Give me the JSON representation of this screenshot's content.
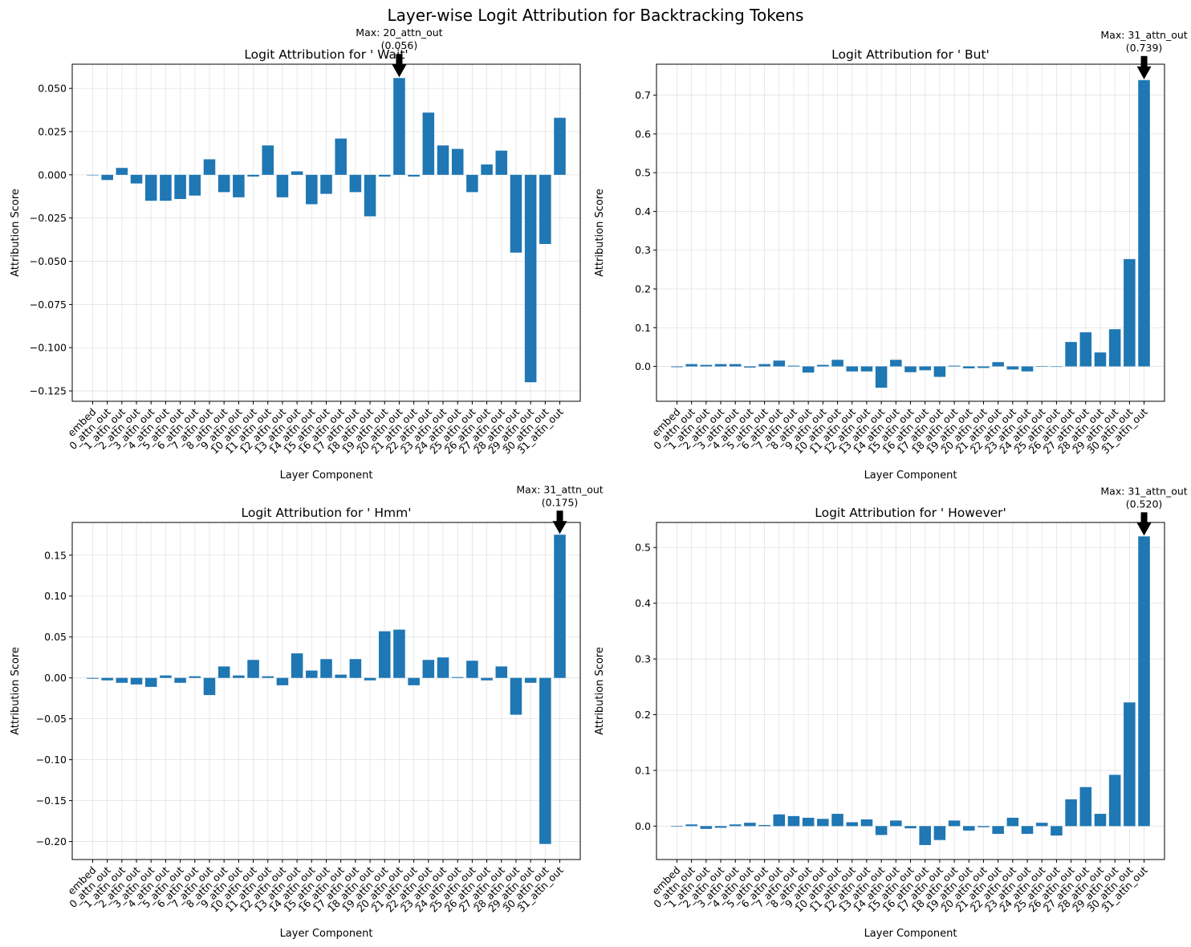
{
  "figure": {
    "title": "Layer-wise Logit Attribution for Backtracking Tokens"
  },
  "colors": {
    "bar": "#1f77b4",
    "arrow": "#000000"
  },
  "chart_data": [
    {
      "type": "bar",
      "title": "Logit Attribution for ' Wait'",
      "xlabel": "Layer Component",
      "ylabel": "Attribution Score",
      "categories": [
        "embed",
        "0_attn_out",
        "1_attn_out",
        "2_attn_out",
        "3_attn_out",
        "4_attn_out",
        "5_attn_out",
        "6_attn_out",
        "7_attn_out",
        "8_attn_out",
        "9_attn_out",
        "10_attn_out",
        "11_attn_out",
        "12_attn_out",
        "13_attn_out",
        "14_attn_out",
        "15_attn_out",
        "16_attn_out",
        "17_attn_out",
        "18_attn_out",
        "19_attn_out",
        "20_attn_out",
        "21_attn_out",
        "22_attn_out",
        "23_attn_out",
        "24_attn_out",
        "25_attn_out",
        "26_attn_out",
        "27_attn_out",
        "28_attn_out",
        "29_attn_out",
        "30_attn_out",
        "31_attn_out"
      ],
      "values": [
        0.0,
        -0.003,
        0.004,
        -0.005,
        -0.015,
        -0.015,
        -0.014,
        -0.012,
        0.009,
        -0.01,
        -0.013,
        -0.001,
        0.017,
        -0.013,
        0.002,
        -0.017,
        -0.011,
        0.021,
        -0.01,
        -0.024,
        -0.001,
        0.056,
        -0.001,
        0.036,
        0.017,
        0.015,
        -0.01,
        0.006,
        0.014,
        -0.045,
        -0.12,
        -0.04,
        0.033
      ],
      "ylim": [
        -0.131,
        0.064
      ],
      "yticks": [
        0.05,
        0.025,
        0.0,
        -0.025,
        -0.05,
        -0.075,
        -0.1,
        -0.125
      ],
      "ytick_labels": [
        "0.050",
        "0.025",
        "0.000",
        "−0.025",
        "−0.050",
        "−0.075",
        "−0.100",
        "−0.125"
      ],
      "grid": true,
      "annotation": {
        "label": "Max: 20_attn_out",
        "value_label": "(0.056)",
        "index": 21,
        "value": 0.056
      }
    },
    {
      "type": "bar",
      "title": "Logit Attribution for ' But'",
      "xlabel": "Layer Component",
      "ylabel": "Attribution Score",
      "categories": [
        "embed",
        "0_attn_out",
        "1_attn_out",
        "2_attn_out",
        "3_attn_out",
        "4_attn_out",
        "5_attn_out",
        "6_attn_out",
        "7_attn_out",
        "8_attn_out",
        "9_attn_out",
        "10_attn_out",
        "11_attn_out",
        "12_attn_out",
        "13_attn_out",
        "14_attn_out",
        "15_attn_out",
        "16_attn_out",
        "17_attn_out",
        "18_attn_out",
        "19_attn_out",
        "20_attn_out",
        "21_attn_out",
        "22_attn_out",
        "23_attn_out",
        "24_attn_out",
        "25_attn_out",
        "26_attn_out",
        "27_attn_out",
        "28_attn_out",
        "29_attn_out",
        "30_attn_out",
        "31_attn_out"
      ],
      "values": [
        -0.002,
        0.006,
        0.004,
        0.006,
        0.006,
        -0.003,
        0.006,
        0.015,
        0.002,
        -0.016,
        0.004,
        0.017,
        -0.013,
        -0.013,
        -0.055,
        0.017,
        -0.015,
        -0.01,
        -0.027,
        0.002,
        -0.005,
        -0.004,
        0.011,
        -0.008,
        -0.013,
        0.001,
        0.0,
        0.063,
        0.088,
        0.036,
        0.096,
        0.277,
        0.739
      ],
      "ylim": [
        -0.09,
        0.78
      ],
      "yticks": [
        0.7,
        0.6,
        0.5,
        0.4,
        0.3,
        0.2,
        0.1,
        0.0
      ],
      "ytick_labels": [
        "0.7",
        "0.6",
        "0.5",
        "0.4",
        "0.3",
        "0.2",
        "0.1",
        "0.0"
      ],
      "grid": true,
      "annotation": {
        "label": "Max: 31_attn_out",
        "value_label": "(0.739)",
        "index": 32,
        "value": 0.739
      }
    },
    {
      "type": "bar",
      "title": "Logit Attribution for ' Hmm'",
      "xlabel": "Layer Component",
      "ylabel": "Attribution Score",
      "categories": [
        "embed",
        "0_attn_out",
        "1_attn_out",
        "2_attn_out",
        "3_attn_out",
        "4_attn_out",
        "5_attn_out",
        "6_attn_out",
        "7_attn_out",
        "8_attn_out",
        "9_attn_out",
        "10_attn_out",
        "11_attn_out",
        "12_attn_out",
        "13_attn_out",
        "14_attn_out",
        "15_attn_out",
        "16_attn_out",
        "17_attn_out",
        "18_attn_out",
        "19_attn_out",
        "20_attn_out",
        "21_attn_out",
        "22_attn_out",
        "23_attn_out",
        "24_attn_out",
        "25_attn_out",
        "26_attn_out",
        "27_attn_out",
        "28_attn_out",
        "29_attn_out",
        "30_attn_out",
        "31_attn_out"
      ],
      "values": [
        -0.001,
        -0.003,
        -0.006,
        -0.008,
        -0.011,
        0.003,
        -0.006,
        0.002,
        -0.021,
        0.014,
        0.003,
        0.022,
        0.002,
        -0.009,
        0.03,
        0.009,
        0.023,
        0.004,
        0.023,
        -0.003,
        0.057,
        0.059,
        -0.009,
        0.022,
        0.025,
        0.001,
        0.021,
        -0.003,
        0.014,
        -0.045,
        -0.006,
        -0.203,
        0.175
      ],
      "ylim": [
        -0.222,
        0.19
      ],
      "yticks": [
        0.15,
        0.1,
        0.05,
        0.0,
        -0.05,
        -0.1,
        -0.15,
        -0.2
      ],
      "ytick_labels": [
        "0.15",
        "0.10",
        "0.05",
        "0.00",
        "−0.05",
        "−0.10",
        "−0.15",
        "−0.20"
      ],
      "grid": true,
      "annotation": {
        "label": "Max: 31_attn_out",
        "value_label": "(0.175)",
        "index": 32,
        "value": 0.175
      }
    },
    {
      "type": "bar",
      "title": "Logit Attribution for ' However'",
      "xlabel": "Layer Component",
      "ylabel": "Attribution Score",
      "categories": [
        "embed",
        "0_attn_out",
        "1_attn_out",
        "2_attn_out",
        "3_attn_out",
        "4_attn_out",
        "5_attn_out",
        "6_attn_out",
        "7_attn_out",
        "8_attn_out",
        "9_attn_out",
        "10_attn_out",
        "11_attn_out",
        "12_attn_out",
        "13_attn_out",
        "14_attn_out",
        "15_attn_out",
        "16_attn_out",
        "17_attn_out",
        "18_attn_out",
        "19_attn_out",
        "20_attn_out",
        "21_attn_out",
        "22_attn_out",
        "23_attn_out",
        "24_attn_out",
        "25_attn_out",
        "26_attn_out",
        "27_attn_out",
        "28_attn_out",
        "29_attn_out",
        "30_attn_out",
        "31_attn_out"
      ],
      "values": [
        -0.001,
        0.003,
        -0.005,
        -0.003,
        0.003,
        0.006,
        0.002,
        0.021,
        0.018,
        0.015,
        0.013,
        0.022,
        0.007,
        0.012,
        -0.016,
        0.01,
        -0.004,
        -0.034,
        -0.025,
        0.01,
        -0.008,
        -0.002,
        -0.014,
        0.015,
        -0.014,
        0.006,
        -0.017,
        0.048,
        0.07,
        0.022,
        0.092,
        0.222,
        0.52
      ],
      "ylim": [
        -0.06,
        0.545
      ],
      "yticks": [
        0.5,
        0.4,
        0.3,
        0.2,
        0.1,
        0.0
      ],
      "ytick_labels": [
        "0.5",
        "0.4",
        "0.3",
        "0.2",
        "0.1",
        "0.0"
      ],
      "grid": true,
      "annotation": {
        "label": "Max: 31_attn_out",
        "value_label": "(0.520)",
        "index": 32,
        "value": 0.52
      }
    }
  ]
}
